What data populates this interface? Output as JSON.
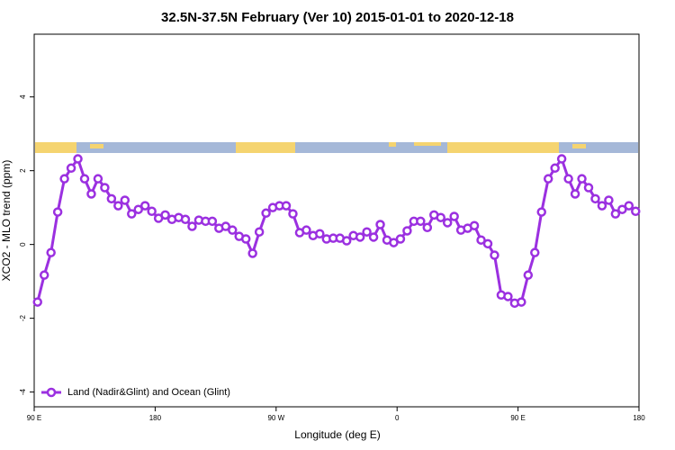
{
  "chart_data": {
    "type": "line",
    "title": "32.5N-37.5N February (Ver 10)   2015-01-01 to 2020-12-18",
    "x_label": "Longitude (deg E)",
    "y_label": "XCO2 - MLO trend (ppm)",
    "xlim": [
      90,
      540
    ],
    "xticks": [
      {
        "value": 90,
        "label": "90 E"
      },
      180,
      {
        "value": 270,
        "label": "90 W"
      },
      {
        "value": 360,
        "label": "0"
      },
      {
        "value": 450,
        "label": "90 E"
      },
      {
        "value": 540,
        "label": "180"
      }
    ],
    "ylim": [
      -4.4,
      5.7
    ],
    "yticks": [
      -4,
      -2,
      0,
      2,
      4
    ],
    "legend_position": "bottom-left",
    "x": [
      92.5,
      97.5,
      102.5,
      107.5,
      112.5,
      117.5,
      122.5,
      127.5,
      132.5,
      137.5,
      142.5,
      147.5,
      152.5,
      157.5,
      162.5,
      167.5,
      172.5,
      177.5,
      182.5,
      187.5,
      192.5,
      197.5,
      202.5,
      207.5,
      212.5,
      217.5,
      222.5,
      227.5,
      232.5,
      237.5,
      242.5,
      247.5,
      252.5,
      257.5,
      262.5,
      267.5,
      272.5,
      277.5,
      282.5,
      287.5,
      292.5,
      297.5,
      302.5,
      307.5,
      312.5,
      317.5,
      322.5,
      327.5,
      332.5,
      337.5,
      342.5,
      347.5,
      352.5,
      357.5,
      362.5,
      367.5,
      372.5,
      377.5,
      382.5,
      387.5,
      392.5,
      397.5,
      402.5,
      407.5,
      412.5,
      417.5,
      422.5,
      427.5,
      432.5,
      437.5,
      442.5,
      447.5,
      452.5,
      457.5,
      462.5,
      467.5,
      472.5,
      477.5,
      482.5,
      487.5,
      492.5,
      497.5,
      502.5,
      507.5,
      512.5,
      517.5,
      522.5,
      527.5,
      532.5,
      537.5
    ],
    "series": [
      {
        "name": "Land (Nadir&Glint) and Ocean (Glint)",
        "color": "#9b30e0",
        "values": [
          -1.56,
          -0.83,
          -0.22,
          0.88,
          1.78,
          2.07,
          2.32,
          1.78,
          1.37,
          1.78,
          1.54,
          1.24,
          1.05,
          1.2,
          0.83,
          0.95,
          1.05,
          0.9,
          0.71,
          0.8,
          0.68,
          0.73,
          0.68,
          0.49,
          0.66,
          0.63,
          0.63,
          0.44,
          0.49,
          0.39,
          0.22,
          0.15,
          -0.24,
          0.34,
          0.85,
          1.0,
          1.05,
          1.05,
          0.83,
          0.32,
          0.39,
          0.24,
          0.29,
          0.15,
          0.17,
          0.17,
          0.1,
          0.24,
          0.2,
          0.34,
          0.2,
          0.54,
          0.12,
          0.05,
          0.15,
          0.37,
          0.63,
          0.63,
          0.46,
          0.8,
          0.73,
          0.59,
          0.76,
          0.39,
          0.44,
          0.51,
          0.12,
          0.02,
          -0.29,
          -1.37,
          -1.41,
          -1.59,
          -1.56,
          -0.83,
          -0.22,
          0.88,
          1.78,
          2.07,
          2.32,
          1.78,
          1.37,
          1.78,
          1.54,
          1.24,
          1.05,
          1.2,
          0.83,
          0.95,
          1.05,
          0.9
        ]
      }
    ]
  }
}
